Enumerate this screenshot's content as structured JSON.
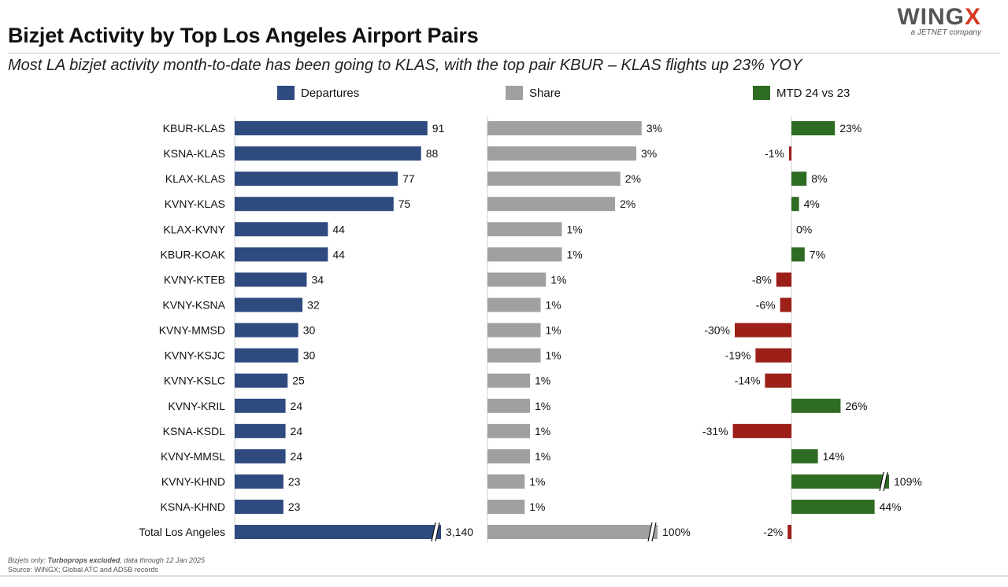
{
  "header": {
    "title": "Bizjet Activity by Top Los Angeles Airport Pairs",
    "subtitle": "Most LA bizjet activity month-to-date has been going to KLAS, with the top pair KBUR – KLAS flights up 23% YOY",
    "logo_word": "WING",
    "logo_x": "X",
    "logo_tagline": "a JETNET company"
  },
  "footnote": {
    "line1_prefix": "Bizjets only: ",
    "line1_bold": "Turboprops excluded",
    "line1_suffix": ", data through 12 Jan 2025",
    "line2": "Source: WINGX; Global ATC and ADSB records"
  },
  "colors": {
    "departures": "#2e4a7f",
    "share": "#a0a0a0",
    "positive": "#2e6b23",
    "negative": "#9c1f18"
  },
  "chart_data": [
    {
      "type": "bar",
      "orientation": "horizontal",
      "title": "Departures",
      "categories": [
        "KBUR-KLAS",
        "KSNA-KLAS",
        "KLAX-KLAS",
        "KVNY-KLAS",
        "KLAX-KVNY",
        "KBUR-KOAK",
        "KVNY-KTEB",
        "KVNY-KSNA",
        "KVNY-MMSD",
        "KVNY-KSJC",
        "KVNY-KSLC",
        "KVNY-KRIL",
        "KSNA-KSDL",
        "KVNY-MMSL",
        "KVNY-KHND",
        "KSNA-KHND",
        "Total Los Angeles"
      ],
      "values": [
        91,
        88,
        77,
        75,
        44,
        44,
        34,
        32,
        30,
        30,
        25,
        24,
        24,
        24,
        23,
        23,
        3140
      ],
      "labels": [
        "91",
        "88",
        "77",
        "75",
        "44",
        "44",
        "34",
        "32",
        "30",
        "30",
        "25",
        "24",
        "24",
        "24",
        "23",
        "23",
        "3,140"
      ],
      "axis_broken_for": [
        "Total Los Angeles"
      ]
    },
    {
      "type": "bar",
      "orientation": "horizontal",
      "title": "Share",
      "categories": [
        "KBUR-KLAS",
        "KSNA-KLAS",
        "KLAX-KLAS",
        "KVNY-KLAS",
        "KLAX-KVNY",
        "KBUR-KOAK",
        "KVNY-KTEB",
        "KVNY-KSNA",
        "KVNY-MMSD",
        "KVNY-KSJC",
        "KVNY-KSLC",
        "KVNY-KRIL",
        "KSNA-KSDL",
        "KVNY-MMSL",
        "KVNY-KHND",
        "KSNA-KHND",
        "Total Los Angeles"
      ],
      "values": [
        2.9,
        2.8,
        2.5,
        2.4,
        1.4,
        1.4,
        1.1,
        1.0,
        1.0,
        1.0,
        0.8,
        0.8,
        0.8,
        0.8,
        0.7,
        0.7,
        100
      ],
      "labels": [
        "3%",
        "3%",
        "2%",
        "2%",
        "1%",
        "1%",
        "1%",
        "1%",
        "1%",
        "1%",
        "1%",
        "1%",
        "1%",
        "1%",
        "1%",
        "1%",
        "100%"
      ],
      "axis_broken_for": [
        "Total Los Angeles"
      ]
    },
    {
      "type": "bar",
      "orientation": "horizontal",
      "title": "MTD 24 vs 23",
      "categories": [
        "KBUR-KLAS",
        "KSNA-KLAS",
        "KLAX-KLAS",
        "KVNY-KLAS",
        "KLAX-KVNY",
        "KBUR-KOAK",
        "KVNY-KTEB",
        "KVNY-KSNA",
        "KVNY-MMSD",
        "KVNY-KSJC",
        "KVNY-KSLC",
        "KVNY-KRIL",
        "KSNA-KSDL",
        "KVNY-MMSL",
        "KVNY-KHND",
        "KSNA-KHND",
        "Total Los Angeles"
      ],
      "values": [
        23,
        -1,
        8,
        4,
        0,
        7,
        -8,
        -6,
        -30,
        -19,
        -14,
        26,
        -31,
        14,
        109,
        44,
        -2
      ],
      "labels": [
        "23%",
        "-1%",
        "8%",
        "4%",
        "0%",
        "7%",
        "-8%",
        "-6%",
        "-30%",
        "-19%",
        "-14%",
        "26%",
        "-31%",
        "14%",
        "109%",
        "44%",
        "-2%"
      ],
      "axis_broken_for": [
        "KVNY-KHND"
      ]
    }
  ]
}
